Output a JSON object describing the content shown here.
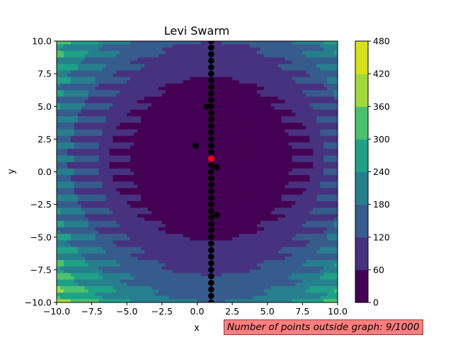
{
  "chart_data": {
    "type": "heatmap",
    "title": "Levi Swarm",
    "xlabel": "x",
    "ylabel": "y",
    "xlim": [
      -10,
      10
    ],
    "ylim": [
      -10,
      10
    ],
    "x_ticks": [
      "−10.0",
      "−7.5",
      "−5.0",
      "−2.5",
      "0.0",
      "2.5",
      "5.0",
      "7.5",
      "10.0"
    ],
    "y_ticks": [
      "−10.0",
      "−7.5",
      "−5.0",
      "−2.5",
      "0.0",
      "2.5",
      "5.0",
      "7.5",
      "10.0"
    ],
    "colorbar": {
      "levels": [
        0,
        60,
        120,
        180,
        240,
        300,
        360,
        420,
        480
      ],
      "tick_labels": [
        "0",
        "60",
        "120",
        "180",
        "240",
        "300",
        "360",
        "420",
        "480"
      ],
      "colors": [
        "#440154",
        "#46327e",
        "#365c8d",
        "#277f8e",
        "#1fa187",
        "#4ac16d",
        "#a0da39",
        "#d8e219"
      ]
    },
    "grid": false,
    "swarm_points": [
      {
        "x": 1.0,
        "y": 10.0
      },
      {
        "x": 1.0,
        "y": 9.5
      },
      {
        "x": 1.0,
        "y": 9.0
      },
      {
        "x": 1.0,
        "y": 8.5
      },
      {
        "x": 1.0,
        "y": 8.0
      },
      {
        "x": 1.0,
        "y": 7.5
      },
      {
        "x": 1.0,
        "y": 7.0
      },
      {
        "x": 1.0,
        "y": 6.5
      },
      {
        "x": 1.0,
        "y": 6.0
      },
      {
        "x": 1.0,
        "y": 5.5
      },
      {
        "x": 1.0,
        "y": 5.0
      },
      {
        "x": 1.0,
        "y": 4.5
      },
      {
        "x": 1.0,
        "y": 4.0
      },
      {
        "x": 1.0,
        "y": 3.5
      },
      {
        "x": 1.0,
        "y": 3.0
      },
      {
        "x": 1.0,
        "y": 2.5
      },
      {
        "x": 1.0,
        "y": 2.0
      },
      {
        "x": 1.0,
        "y": 1.5
      },
      {
        "x": 1.0,
        "y": 0.5
      },
      {
        "x": 1.0,
        "y": 0.0
      },
      {
        "x": 1.0,
        "y": -0.5
      },
      {
        "x": 1.0,
        "y": -1.0
      },
      {
        "x": 1.0,
        "y": -1.5
      },
      {
        "x": 1.0,
        "y": -2.0
      },
      {
        "x": 1.0,
        "y": -2.5
      },
      {
        "x": 1.0,
        "y": -3.0
      },
      {
        "x": 1.0,
        "y": -3.5
      },
      {
        "x": 1.0,
        "y": -4.0
      },
      {
        "x": 1.0,
        "y": -4.5
      },
      {
        "x": 1.0,
        "y": -5.0
      },
      {
        "x": 1.0,
        "y": -5.5
      },
      {
        "x": 1.0,
        "y": -6.0
      },
      {
        "x": 1.0,
        "y": -6.5
      },
      {
        "x": 1.0,
        "y": -7.0
      },
      {
        "x": 1.0,
        "y": -7.5
      },
      {
        "x": 1.0,
        "y": -8.0
      },
      {
        "x": 1.0,
        "y": -8.5
      },
      {
        "x": 1.0,
        "y": -9.0
      },
      {
        "x": 1.0,
        "y": -9.5
      },
      {
        "x": 1.0,
        "y": -10.0
      },
      {
        "x": 0.7,
        "y": 5.0
      },
      {
        "x": -0.1,
        "y": 2.0
      },
      {
        "x": 1.4,
        "y": 0.35
      },
      {
        "x": 1.4,
        "y": -3.3
      }
    ],
    "best_point": {
      "x": 1.0,
      "y": 1.0,
      "color": "#ff0000"
    },
    "point_color": "#000000"
  },
  "annotation": {
    "text": "Number of points outside graph: 9/1000",
    "background": "#ff7f7f"
  }
}
